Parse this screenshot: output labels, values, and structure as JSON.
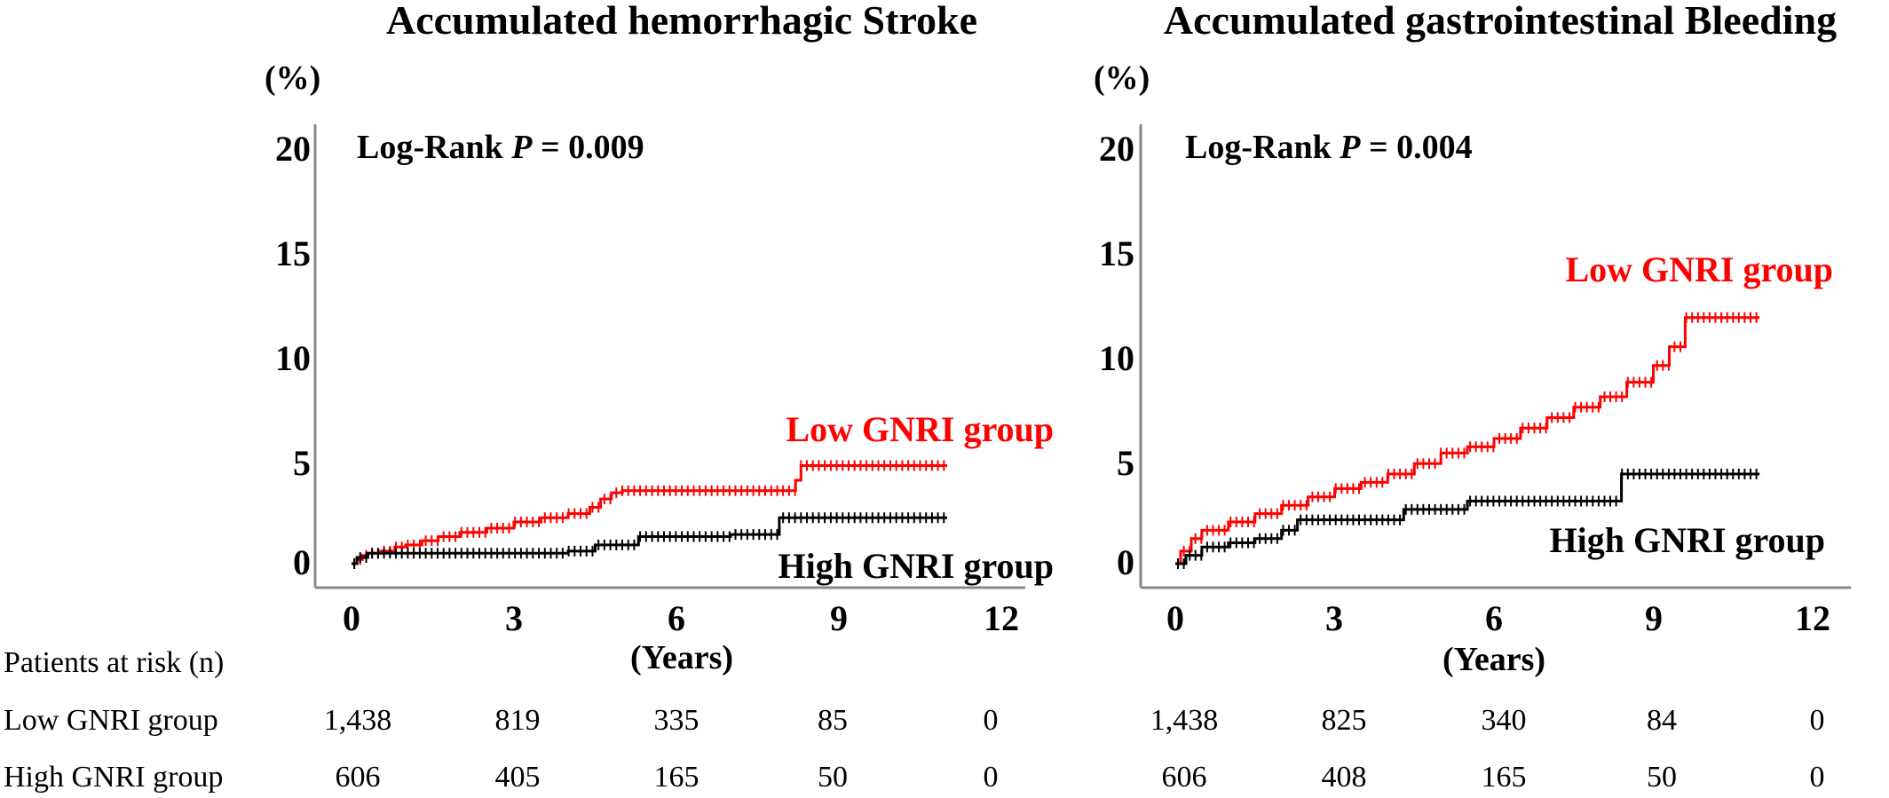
{
  "risk_table": {
    "header": "Patients at risk (n)",
    "row_labels": [
      "Low GNRI group",
      "High GNRI group"
    ]
  },
  "chart_data": [
    {
      "type": "line",
      "title": "Accumulated hemorrhagic Stroke",
      "ylabel": "(%)",
      "xlabel": "(Years)",
      "xlim": [
        0,
        12
      ],
      "ylim": [
        0,
        20
      ],
      "x_ticks": [
        "0",
        "3",
        "6",
        "9",
        "12"
      ],
      "y_ticks": [
        "0",
        "5",
        "10",
        "15",
        "20"
      ],
      "annotation": "Log-Rank P = 0.009",
      "annotation_prefix": "Log-Rank",
      "annotation_italic": "P",
      "annotation_value": "= 0.009",
      "series": [
        {
          "name": "Low GNRI group",
          "color": "#ff0000",
          "x": [
            0,
            0.1,
            0.2,
            0.3,
            0.5,
            0.8,
            1.0,
            1.3,
            1.6,
            2.0,
            2.5,
            3.0,
            3.5,
            4.0,
            4.4,
            4.6,
            4.8,
            5.0,
            6.0,
            7.0,
            8.0,
            8.2,
            8.3,
            9.0,
            10.0,
            11.0
          ],
          "values": [
            0,
            0.2,
            0.4,
            0.5,
            0.6,
            0.8,
            0.9,
            1.1,
            1.3,
            1.5,
            1.7,
            2.0,
            2.2,
            2.4,
            2.7,
            3.1,
            3.4,
            3.5,
            3.5,
            3.5,
            3.5,
            4.0,
            4.7,
            4.7,
            4.7,
            4.7
          ]
        },
        {
          "name": "High GNRI group",
          "color": "#000000",
          "x": [
            0,
            0.1,
            0.3,
            0.5,
            1.0,
            2.0,
            3.0,
            4.0,
            4.5,
            5.0,
            5.3,
            6.0,
            7.0,
            7.9,
            8.5,
            9.0,
            10.0,
            11.0
          ],
          "values": [
            0,
            0.3,
            0.5,
            0.5,
            0.5,
            0.5,
            0.5,
            0.6,
            0.9,
            0.9,
            1.3,
            1.3,
            1.4,
            2.2,
            2.2,
            2.2,
            2.2,
            2.2
          ]
        }
      ],
      "labels": {
        "low": "Low GNRI group",
        "high": "High GNRI group"
      },
      "risk": {
        "low": [
          "1,438",
          "819",
          "335",
          "85",
          "0"
        ],
        "high": [
          "606",
          "405",
          "165",
          "50",
          "0"
        ]
      }
    },
    {
      "type": "line",
      "title": "Accumulated gastrointestinal Bleeding",
      "ylabel": "(%)",
      "xlabel": "(Years)",
      "xlim": [
        0,
        12
      ],
      "ylim": [
        0,
        20
      ],
      "x_ticks": [
        "0",
        "3",
        "6",
        "9",
        "12"
      ],
      "y_ticks": [
        "0",
        "5",
        "10",
        "15",
        "20"
      ],
      "annotation": "Log-Rank P = 0.004",
      "annotation_prefix": "Log-Rank",
      "annotation_italic": "P",
      "annotation_value": "= 0.004",
      "series": [
        {
          "name": "Low GNRI group",
          "color": "#ff0000",
          "x": [
            0,
            0.1,
            0.3,
            0.5,
            1.0,
            1.5,
            2.0,
            2.5,
            3.0,
            3.5,
            4.0,
            4.5,
            5.0,
            5.5,
            6.0,
            6.5,
            7.0,
            7.5,
            8.0,
            8.5,
            9.0,
            9.3,
            9.6,
            10.0,
            11.0
          ],
          "values": [
            0,
            0.6,
            1.2,
            1.6,
            2.0,
            2.4,
            2.8,
            3.2,
            3.6,
            3.9,
            4.3,
            4.8,
            5.3,
            5.6,
            6.0,
            6.5,
            7.0,
            7.5,
            8.0,
            8.7,
            9.5,
            10.4,
            11.8,
            11.8,
            11.8
          ]
        },
        {
          "name": "High GNRI group",
          "color": "#000000",
          "x": [
            0,
            0.2,
            0.5,
            1.0,
            1.5,
            2.0,
            2.3,
            3.0,
            4.0,
            4.3,
            5.0,
            5.5,
            6.0,
            7.0,
            8.0,
            8.4,
            9.0,
            10.0,
            11.0
          ],
          "values": [
            0,
            0.4,
            0.8,
            1.0,
            1.2,
            1.6,
            2.1,
            2.1,
            2.1,
            2.6,
            2.6,
            3.0,
            3.0,
            3.0,
            3.0,
            4.3,
            4.3,
            4.3,
            4.3
          ]
        }
      ],
      "labels": {
        "low": "Low GNRI group",
        "high": "High GNRI group"
      },
      "risk": {
        "low": [
          "1,438",
          "825",
          "340",
          "84",
          "0"
        ],
        "high": [
          "606",
          "408",
          "165",
          "50",
          "0"
        ]
      }
    }
  ]
}
